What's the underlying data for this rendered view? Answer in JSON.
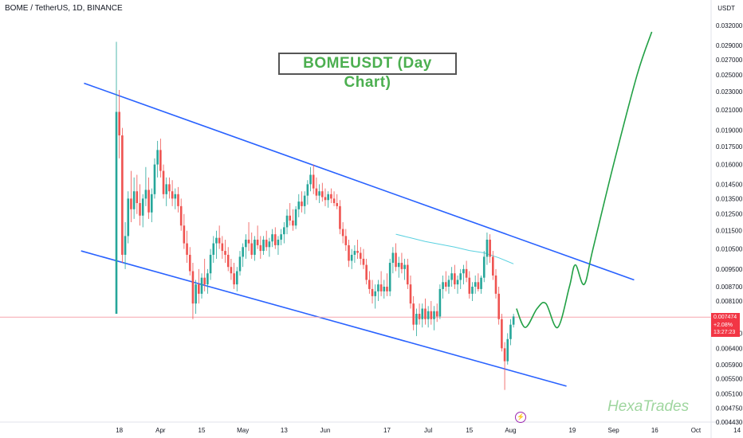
{
  "header": {
    "symbol_line": "BOME / TetherUS, 1D, BINANCE",
    "currency": "USDT"
  },
  "annotation": {
    "title": "BOMEUSDT (Day Chart)",
    "watermark": "HexaTrades",
    "flash_icon": "lightning-icon"
  },
  "price_tag": {
    "price": "0.007474",
    "change": "+2.08%",
    "countdown": "13:27:23"
  },
  "colors": {
    "up": "#26a69a",
    "down": "#ef5350",
    "channel": "#2962ff",
    "projection": "#22a045",
    "ma": "#5ad1e0",
    "price_line": "#f7a6ae",
    "title": "#4caf50"
  },
  "chart_data": {
    "type": "candlestick",
    "title": "BOMEUSDT (Day Chart)",
    "y_axis": {
      "scale": "log",
      "ticks": [
        "0.032000",
        "0.029000",
        "0.027000",
        "0.025000",
        "0.023000",
        "0.021000",
        "0.019000",
        "0.017500",
        "0.016000",
        "0.014500",
        "0.013500",
        "0.012500",
        "0.011500",
        "0.010500",
        "0.009500",
        "0.008700",
        "0.008100",
        "0.007474",
        "0.006900",
        "0.006400",
        "0.005900",
        "0.005500",
        "0.005100",
        "0.004750",
        "0.004430"
      ]
    },
    "x_axis": {
      "ticks": [
        "18",
        "Apr",
        "15",
        "May",
        "13",
        "Jun",
        "17",
        "Jul",
        "15",
        "Aug",
        "19",
        "Sep",
        "16",
        "Oct",
        "14"
      ]
    },
    "candles": [
      {
        "d": "Mar 17",
        "o": 0.0076,
        "h": 0.0295,
        "l": 0.0076,
        "c": 0.0208
      },
      {
        "d": "Mar 18",
        "o": 0.0208,
        "h": 0.0232,
        "l": 0.0165,
        "c": 0.0185
      },
      {
        "d": "Mar 19",
        "o": 0.0185,
        "h": 0.0192,
        "l": 0.0098,
        "c": 0.0102
      },
      {
        "d": "Mar 20",
        "o": 0.0102,
        "h": 0.012,
        "l": 0.0095,
        "c": 0.0112
      },
      {
        "d": "Mar 21",
        "o": 0.0112,
        "h": 0.014,
        "l": 0.0108,
        "c": 0.0135
      },
      {
        "d": "Mar 22",
        "o": 0.0135,
        "h": 0.0155,
        "l": 0.012,
        "c": 0.0128
      },
      {
        "d": "Mar 23",
        "o": 0.0128,
        "h": 0.015,
        "l": 0.0122,
        "c": 0.014
      },
      {
        "d": "Mar 24",
        "o": 0.014,
        "h": 0.0152,
        "l": 0.0125,
        "c": 0.0132
      },
      {
        "d": "Mar 25",
        "o": 0.0132,
        "h": 0.0145,
        "l": 0.0118,
        "c": 0.0124
      },
      {
        "d": "Mar 26",
        "o": 0.0124,
        "h": 0.0138,
        "l": 0.0117,
        "c": 0.0135
      },
      {
        "d": "Mar 27",
        "o": 0.0135,
        "h": 0.0158,
        "l": 0.013,
        "c": 0.0141
      },
      {
        "d": "Mar 28",
        "o": 0.0141,
        "h": 0.015,
        "l": 0.0122,
        "c": 0.0126
      },
      {
        "d": "Mar 29",
        "o": 0.0126,
        "h": 0.0142,
        "l": 0.012,
        "c": 0.0138
      },
      {
        "d": "Mar 30",
        "o": 0.0138,
        "h": 0.0165,
        "l": 0.0135,
        "c": 0.016
      },
      {
        "d": "Mar 31",
        "o": 0.016,
        "h": 0.018,
        "l": 0.015,
        "c": 0.0172
      },
      {
        "d": "Apr 1",
        "o": 0.0172,
        "h": 0.0182,
        "l": 0.015,
        "c": 0.0155
      },
      {
        "d": "Apr 2",
        "o": 0.0155,
        "h": 0.016,
        "l": 0.0135,
        "c": 0.0138
      },
      {
        "d": "Apr 3",
        "o": 0.0138,
        "h": 0.015,
        "l": 0.013,
        "c": 0.0145
      },
      {
        "d": "Apr 4",
        "o": 0.0145,
        "h": 0.015,
        "l": 0.0135,
        "c": 0.014
      },
      {
        "d": "Apr 5",
        "o": 0.014,
        "h": 0.0148,
        "l": 0.013,
        "c": 0.0135
      },
      {
        "d": "Apr 6",
        "o": 0.0135,
        "h": 0.0142,
        "l": 0.0128,
        "c": 0.0138
      },
      {
        "d": "Apr 7",
        "o": 0.0138,
        "h": 0.0143,
        "l": 0.0126,
        "c": 0.013
      },
      {
        "d": "Apr 8",
        "o": 0.013,
        "h": 0.0135,
        "l": 0.0115,
        "c": 0.0118
      },
      {
        "d": "Apr 9",
        "o": 0.0118,
        "h": 0.0125,
        "l": 0.0105,
        "c": 0.0108
      },
      {
        "d": "Apr 10",
        "o": 0.0108,
        "h": 0.0115,
        "l": 0.0098,
        "c": 0.0102
      },
      {
        "d": "Apr 11",
        "o": 0.0102,
        "h": 0.0106,
        "l": 0.0092,
        "c": 0.0094
      },
      {
        "d": "Apr 12",
        "o": 0.0094,
        "h": 0.0098,
        "l": 0.0074,
        "c": 0.008
      },
      {
        "d": "Apr 13",
        "o": 0.008,
        "h": 0.009,
        "l": 0.0076,
        "c": 0.0088
      },
      {
        "d": "Apr 14",
        "o": 0.0088,
        "h": 0.0095,
        "l": 0.008,
        "c": 0.0084
      },
      {
        "d": "Apr 15",
        "o": 0.0084,
        "h": 0.0093,
        "l": 0.0082,
        "c": 0.0091
      },
      {
        "d": "Apr 16",
        "o": 0.0091,
        "h": 0.01,
        "l": 0.0085,
        "c": 0.0088
      },
      {
        "d": "Apr 17",
        "o": 0.0088,
        "h": 0.0095,
        "l": 0.0084,
        "c": 0.0093
      },
      {
        "d": "Apr 18",
        "o": 0.0093,
        "h": 0.0105,
        "l": 0.009,
        "c": 0.0102
      },
      {
        "d": "Apr 19",
        "o": 0.0102,
        "h": 0.0112,
        "l": 0.0098,
        "c": 0.0108
      },
      {
        "d": "Apr 20",
        "o": 0.0108,
        "h": 0.0115,
        "l": 0.01,
        "c": 0.0111
      },
      {
        "d": "Apr 21",
        "o": 0.0111,
        "h": 0.0118,
        "l": 0.0105,
        "c": 0.0108
      },
      {
        "d": "Apr 22",
        "o": 0.0108,
        "h": 0.0112,
        "l": 0.01,
        "c": 0.0104
      },
      {
        "d": "Apr 23",
        "o": 0.0104,
        "h": 0.011,
        "l": 0.0098,
        "c": 0.0102
      },
      {
        "d": "Apr 24",
        "o": 0.0102,
        "h": 0.0106,
        "l": 0.0094,
        "c": 0.0096
      },
      {
        "d": "Apr 25",
        "o": 0.0096,
        "h": 0.01,
        "l": 0.009,
        "c": 0.0093
      },
      {
        "d": "Apr 26",
        "o": 0.0093,
        "h": 0.0098,
        "l": 0.0086,
        "c": 0.0088
      },
      {
        "d": "Apr 27",
        "o": 0.0088,
        "h": 0.0096,
        "l": 0.0085,
        "c": 0.0094
      },
      {
        "d": "Apr 28",
        "o": 0.0094,
        "h": 0.0104,
        "l": 0.0092,
        "c": 0.0101
      },
      {
        "d": "Apr 29",
        "o": 0.0101,
        "h": 0.0108,
        "l": 0.0096,
        "c": 0.0106
      },
      {
        "d": "Apr 30",
        "o": 0.0106,
        "h": 0.0113,
        "l": 0.01,
        "c": 0.011
      },
      {
        "d": "May 1",
        "o": 0.011,
        "h": 0.012,
        "l": 0.0104,
        "c": 0.0108
      },
      {
        "d": "May 2",
        "o": 0.0108,
        "h": 0.0114,
        "l": 0.01,
        "c": 0.0102
      },
      {
        "d": "May 3",
        "o": 0.0102,
        "h": 0.0112,
        "l": 0.0099,
        "c": 0.011
      },
      {
        "d": "May 4",
        "o": 0.011,
        "h": 0.0118,
        "l": 0.0105,
        "c": 0.0107
      },
      {
        "d": "May 5",
        "o": 0.0107,
        "h": 0.0112,
        "l": 0.01,
        "c": 0.0104
      },
      {
        "d": "May 6",
        "o": 0.0104,
        "h": 0.0112,
        "l": 0.0102,
        "c": 0.011
      },
      {
        "d": "May 7",
        "o": 0.011,
        "h": 0.0115,
        "l": 0.0104,
        "c": 0.0106
      },
      {
        "d": "May 8",
        "o": 0.0106,
        "h": 0.0111,
        "l": 0.0101,
        "c": 0.0109
      },
      {
        "d": "May 9",
        "o": 0.0109,
        "h": 0.0116,
        "l": 0.0106,
        "c": 0.0113
      },
      {
        "d": "May 10",
        "o": 0.0113,
        "h": 0.0117,
        "l": 0.0105,
        "c": 0.0107
      },
      {
        "d": "May 11",
        "o": 0.0107,
        "h": 0.0112,
        "l": 0.0102,
        "c": 0.011
      },
      {
        "d": "May 12",
        "o": 0.011,
        "h": 0.0116,
        "l": 0.0107,
        "c": 0.0113
      },
      {
        "d": "May 13",
        "o": 0.0113,
        "h": 0.012,
        "l": 0.0108,
        "c": 0.0117
      },
      {
        "d": "May 14",
        "o": 0.0117,
        "h": 0.0128,
        "l": 0.0113,
        "c": 0.0124
      },
      {
        "d": "May 15",
        "o": 0.0124,
        "h": 0.0132,
        "l": 0.0118,
        "c": 0.0121
      },
      {
        "d": "May 16",
        "o": 0.0121,
        "h": 0.0128,
        "l": 0.0115,
        "c": 0.0118
      },
      {
        "d": "May 17",
        "o": 0.0118,
        "h": 0.013,
        "l": 0.0116,
        "c": 0.0128
      },
      {
        "d": "May 18",
        "o": 0.0128,
        "h": 0.0138,
        "l": 0.0123,
        "c": 0.0133
      },
      {
        "d": "May 19",
        "o": 0.0133,
        "h": 0.014,
        "l": 0.0126,
        "c": 0.013
      },
      {
        "d": "May 20",
        "o": 0.013,
        "h": 0.014,
        "l": 0.0125,
        "c": 0.0137
      },
      {
        "d": "May 21",
        "o": 0.0137,
        "h": 0.0148,
        "l": 0.0131,
        "c": 0.0145
      },
      {
        "d": "May 22",
        "o": 0.0145,
        "h": 0.0158,
        "l": 0.014,
        "c": 0.0152
      },
      {
        "d": "May 23",
        "o": 0.0152,
        "h": 0.016,
        "l": 0.0138,
        "c": 0.0142
      },
      {
        "d": "May 24",
        "o": 0.0142,
        "h": 0.015,
        "l": 0.0134,
        "c": 0.0137
      },
      {
        "d": "May 25",
        "o": 0.0137,
        "h": 0.0145,
        "l": 0.0132,
        "c": 0.014
      },
      {
        "d": "May 26",
        "o": 0.014,
        "h": 0.0146,
        "l": 0.0133,
        "c": 0.0136
      },
      {
        "d": "May 27",
        "o": 0.0136,
        "h": 0.0142,
        "l": 0.013,
        "c": 0.0134
      },
      {
        "d": "May 28",
        "o": 0.0134,
        "h": 0.014,
        "l": 0.0129,
        "c": 0.0138
      },
      {
        "d": "May 29",
        "o": 0.0138,
        "h": 0.0142,
        "l": 0.0132,
        "c": 0.0135
      },
      {
        "d": "May 30",
        "o": 0.0135,
        "h": 0.014,
        "l": 0.013,
        "c": 0.0132
      },
      {
        "d": "May 31",
        "o": 0.0132,
        "h": 0.0138,
        "l": 0.0128,
        "c": 0.013
      },
      {
        "d": "Jun 1",
        "o": 0.013,
        "h": 0.0134,
        "l": 0.0113,
        "c": 0.0116
      },
      {
        "d": "Jun 2",
        "o": 0.0116,
        "h": 0.012,
        "l": 0.0108,
        "c": 0.0112
      },
      {
        "d": "Jun 3",
        "o": 0.0112,
        "h": 0.0116,
        "l": 0.0104,
        "c": 0.0107
      },
      {
        "d": "Jun 4",
        "o": 0.0107,
        "h": 0.011,
        "l": 0.0096,
        "c": 0.0099
      },
      {
        "d": "Jun 5",
        "o": 0.0099,
        "h": 0.0105,
        "l": 0.0095,
        "c": 0.0102
      },
      {
        "d": "Jun 6",
        "o": 0.0102,
        "h": 0.0107,
        "l": 0.0098,
        "c": 0.0104
      },
      {
        "d": "Jun 7",
        "o": 0.0104,
        "h": 0.011,
        "l": 0.01,
        "c": 0.0103
      },
      {
        "d": "Jun 8",
        "o": 0.0103,
        "h": 0.0106,
        "l": 0.0097,
        "c": 0.01
      },
      {
        "d": "Jun 9",
        "o": 0.01,
        "h": 0.0105,
        "l": 0.0095,
        "c": 0.0097
      },
      {
        "d": "Jun 10",
        "o": 0.0097,
        "h": 0.01,
        "l": 0.0088,
        "c": 0.009
      },
      {
        "d": "Jun 11",
        "o": 0.009,
        "h": 0.0094,
        "l": 0.0084,
        "c": 0.0086
      },
      {
        "d": "Jun 12",
        "o": 0.0086,
        "h": 0.009,
        "l": 0.008,
        "c": 0.0083
      },
      {
        "d": "Jun 13",
        "o": 0.0083,
        "h": 0.0088,
        "l": 0.0078,
        "c": 0.0085
      },
      {
        "d": "Jun 14",
        "o": 0.0085,
        "h": 0.009,
        "l": 0.0081,
        "c": 0.0088
      },
      {
        "d": "Jun 15",
        "o": 0.0088,
        "h": 0.0094,
        "l": 0.0083,
        "c": 0.0085
      },
      {
        "d": "Jun 16",
        "o": 0.0085,
        "h": 0.009,
        "l": 0.0082,
        "c": 0.0087
      },
      {
        "d": "Jun 17",
        "o": 0.0087,
        "h": 0.0093,
        "l": 0.0083,
        "c": 0.0085
      },
      {
        "d": "Jun 18",
        "o": 0.0085,
        "h": 0.01,
        "l": 0.0083,
        "c": 0.0098
      },
      {
        "d": "Jun 19",
        "o": 0.0098,
        "h": 0.0106,
        "l": 0.0093,
        "c": 0.0103
      },
      {
        "d": "Jun 20",
        "o": 0.0103,
        "h": 0.0108,
        "l": 0.0094,
        "c": 0.0096
      },
      {
        "d": "Jun 21",
        "o": 0.0096,
        "h": 0.0101,
        "l": 0.0091,
        "c": 0.0098
      },
      {
        "d": "Jun 22",
        "o": 0.0098,
        "h": 0.0103,
        "l": 0.0093,
        "c": 0.0095
      },
      {
        "d": "Jun 23",
        "o": 0.0095,
        "h": 0.01,
        "l": 0.009,
        "c": 0.0097
      },
      {
        "d": "Jun 24",
        "o": 0.0097,
        "h": 0.01,
        "l": 0.0086,
        "c": 0.0088
      },
      {
        "d": "Jun 25",
        "o": 0.0088,
        "h": 0.0092,
        "l": 0.0078,
        "c": 0.008
      },
      {
        "d": "Jun 26",
        "o": 0.008,
        "h": 0.0083,
        "l": 0.007,
        "c": 0.0072
      },
      {
        "d": "Jun 27",
        "o": 0.0072,
        "h": 0.0078,
        "l": 0.0068,
        "c": 0.0076
      },
      {
        "d": "Jun 28",
        "o": 0.0076,
        "h": 0.008,
        "l": 0.0072,
        "c": 0.0074
      },
      {
        "d": "Jun 29",
        "o": 0.0074,
        "h": 0.008,
        "l": 0.0071,
        "c": 0.0078
      },
      {
        "d": "Jun 30",
        "o": 0.0078,
        "h": 0.0082,
        "l": 0.0072,
        "c": 0.0074
      },
      {
        "d": "Jul 1",
        "o": 0.0074,
        "h": 0.0079,
        "l": 0.0071,
        "c": 0.0077
      },
      {
        "d": "Jul 2",
        "o": 0.0077,
        "h": 0.0081,
        "l": 0.0072,
        "c": 0.0074
      },
      {
        "d": "Jul 3",
        "o": 0.0074,
        "h": 0.0079,
        "l": 0.007,
        "c": 0.0077
      },
      {
        "d": "Jul 4",
        "o": 0.0077,
        "h": 0.008,
        "l": 0.0073,
        "c": 0.0075
      },
      {
        "d": "Jul 5",
        "o": 0.0075,
        "h": 0.0088,
        "l": 0.0074,
        "c": 0.0086
      },
      {
        "d": "Jul 6",
        "o": 0.0086,
        "h": 0.0092,
        "l": 0.0082,
        "c": 0.0089
      },
      {
        "d": "Jul 7",
        "o": 0.0089,
        "h": 0.0094,
        "l": 0.0085,
        "c": 0.0087
      },
      {
        "d": "Jul 8",
        "o": 0.0087,
        "h": 0.0092,
        "l": 0.0084,
        "c": 0.009
      },
      {
        "d": "Jul 9",
        "o": 0.009,
        "h": 0.0096,
        "l": 0.0087,
        "c": 0.0093
      },
      {
        "d": "Jul 10",
        "o": 0.0093,
        "h": 0.0097,
        "l": 0.0086,
        "c": 0.0088
      },
      {
        "d": "Jul 11",
        "o": 0.0088,
        "h": 0.0092,
        "l": 0.0084,
        "c": 0.009
      },
      {
        "d": "Jul 12",
        "o": 0.009,
        "h": 0.0095,
        "l": 0.0086,
        "c": 0.0093
      },
      {
        "d": "Jul 13",
        "o": 0.0093,
        "h": 0.0097,
        "l": 0.0088,
        "c": 0.0095
      },
      {
        "d": "Jul 14",
        "o": 0.0095,
        "h": 0.0099,
        "l": 0.0089,
        "c": 0.0091
      },
      {
        "d": "Jul 15",
        "o": 0.0091,
        "h": 0.0094,
        "l": 0.0082,
        "c": 0.0084
      },
      {
        "d": "Jul 16",
        "o": 0.0084,
        "h": 0.0089,
        "l": 0.0081,
        "c": 0.0087
      },
      {
        "d": "Jul 17",
        "o": 0.0087,
        "h": 0.0092,
        "l": 0.0084,
        "c": 0.0089
      },
      {
        "d": "Jul 18",
        "o": 0.0089,
        "h": 0.0093,
        "l": 0.0085,
        "c": 0.0086
      },
      {
        "d": "Jul 19",
        "o": 0.0086,
        "h": 0.0092,
        "l": 0.0084,
        "c": 0.0091
      },
      {
        "d": "Jul 20",
        "o": 0.0091,
        "h": 0.0104,
        "l": 0.0089,
        "c": 0.0101
      },
      {
        "d": "Jul 21",
        "o": 0.0101,
        "h": 0.0114,
        "l": 0.0097,
        "c": 0.011
      },
      {
        "d": "Jul 22",
        "o": 0.011,
        "h": 0.0113,
        "l": 0.0098,
        "c": 0.0101
      },
      {
        "d": "Jul 23",
        "o": 0.0101,
        "h": 0.0104,
        "l": 0.009,
        "c": 0.0092
      },
      {
        "d": "Jul 24",
        "o": 0.0092,
        "h": 0.0095,
        "l": 0.0082,
        "c": 0.0084
      },
      {
        "d": "Jul 25",
        "o": 0.0084,
        "h": 0.0087,
        "l": 0.0072,
        "c": 0.0074
      },
      {
        "d": "Jul 26",
        "o": 0.0074,
        "h": 0.0076,
        "l": 0.0063,
        "c": 0.0064
      },
      {
        "d": "Jul 27",
        "o": 0.0064,
        "h": 0.0066,
        "l": 0.0052,
        "c": 0.006
      },
      {
        "d": "Jul 28",
        "o": 0.006,
        "h": 0.0069,
        "l": 0.0059,
        "c": 0.0067
      },
      {
        "d": "Jul 29",
        "o": 0.0067,
        "h": 0.0074,
        "l": 0.0065,
        "c": 0.0072
      },
      {
        "d": "Jul 30",
        "o": 0.0072,
        "h": 0.0076,
        "l": 0.0071,
        "c": 0.0075
      }
    ],
    "moving_average": [
      {
        "d": "Jun 20",
        "v": 0.0113
      },
      {
        "d": "Jun 25",
        "v": 0.0111
      },
      {
        "d": "Jun 30",
        "v": 0.0109
      },
      {
        "d": "Jul 5",
        "v": 0.01075
      },
      {
        "d": "Jul 10",
        "v": 0.0106
      },
      {
        "d": "Jul 15",
        "v": 0.01042
      },
      {
        "d": "Jul 20",
        "v": 0.0103
      },
      {
        "d": "Jul 25",
        "v": 0.01005
      },
      {
        "d": "Jul 30",
        "v": 0.00975
      }
    ],
    "channel_upper": [
      {
        "d": "Mar 6",
        "v": 0.024
      },
      {
        "d": "Sep 9",
        "v": 0.009
      }
    ],
    "channel_lower": [
      {
        "d": "Mar 5",
        "v": 0.0104
      },
      {
        "d": "Aug 17",
        "v": 0.0053
      }
    ],
    "projection": [
      {
        "d": "Jul 31",
        "v": 0.0078
      },
      {
        "d": "Aug 3",
        "v": 0.0071
      },
      {
        "d": "Aug 7",
        "v": 0.0078
      },
      {
        "d": "Aug 10",
        "v": 0.008
      },
      {
        "d": "Aug 14",
        "v": 0.0071
      },
      {
        "d": "Aug 18",
        "v": 0.0087
      },
      {
        "d": "Aug 20",
        "v": 0.0097
      },
      {
        "d": "Aug 23",
        "v": 0.0088
      },
      {
        "d": "Aug 26",
        "v": 0.0105
      },
      {
        "d": "Sep 2",
        "v": 0.016
      },
      {
        "d": "Sep 10",
        "v": 0.025
      },
      {
        "d": "Sep 15",
        "v": 0.031
      }
    ],
    "current_price": 0.007474
  }
}
